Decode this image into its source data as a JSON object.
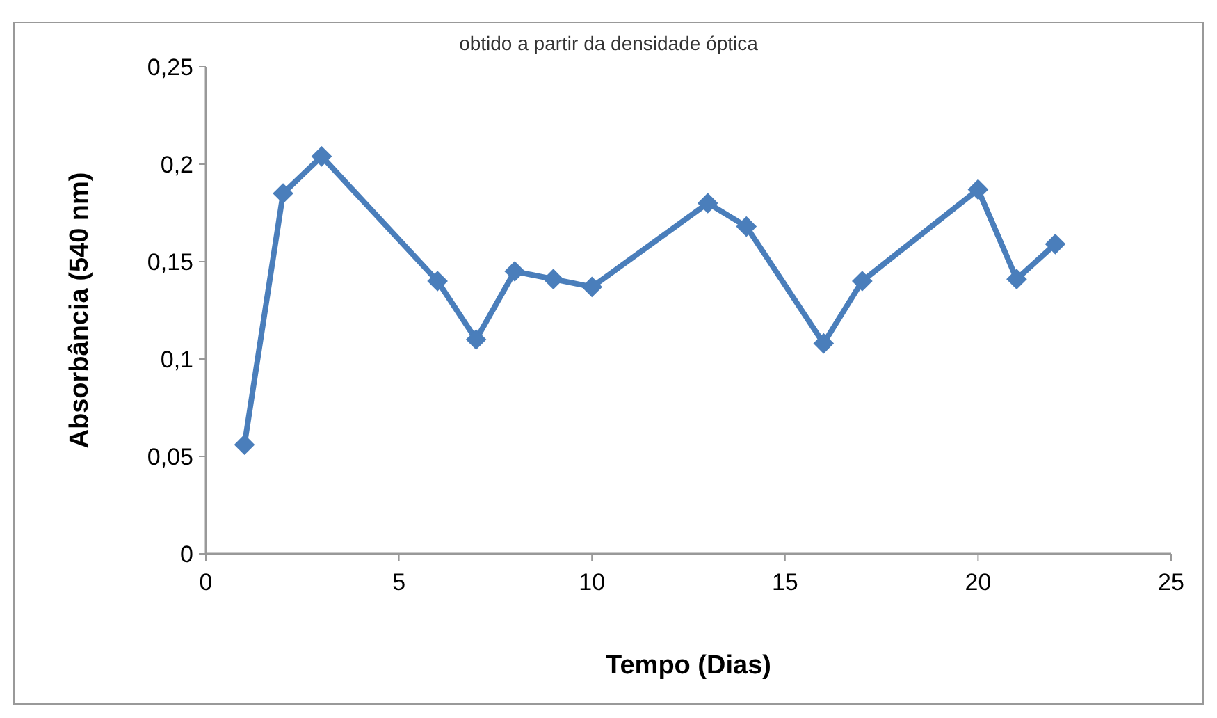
{
  "chart_data": {
    "type": "line",
    "title": "obtido a partir da densidade óptica",
    "xlabel": "Tempo (Dias)",
    "ylabel": "Absorbância (540 nm)",
    "x": [
      1,
      2,
      3,
      6,
      7,
      8,
      9,
      10,
      13,
      14,
      16,
      17,
      20,
      21,
      22
    ],
    "series": [
      {
        "color": "#4a7ebb",
        "values": [
          0.056,
          0.185,
          0.204,
          0.14,
          0.11,
          0.145,
          0.141,
          0.137,
          0.18,
          0.168,
          0.108,
          0.14,
          0.187,
          0.141,
          0.159
        ]
      }
    ],
    "xlim": [
      0,
      25
    ],
    "xticks": [
      0,
      5,
      10,
      15,
      20,
      25
    ],
    "ylim": [
      0,
      0.25
    ],
    "yticks": [
      {
        "value": 0,
        "label": "0"
      },
      {
        "value": 0.05,
        "label": "0,05"
      },
      {
        "value": 0.1,
        "label": "0,1"
      },
      {
        "value": 0.15,
        "label": "0,15"
      },
      {
        "value": 0.2,
        "label": "0,2"
      },
      {
        "value": 0.25,
        "label": "0,25"
      }
    ],
    "marker": "diamond",
    "line_style": "solid",
    "grid": false
  }
}
